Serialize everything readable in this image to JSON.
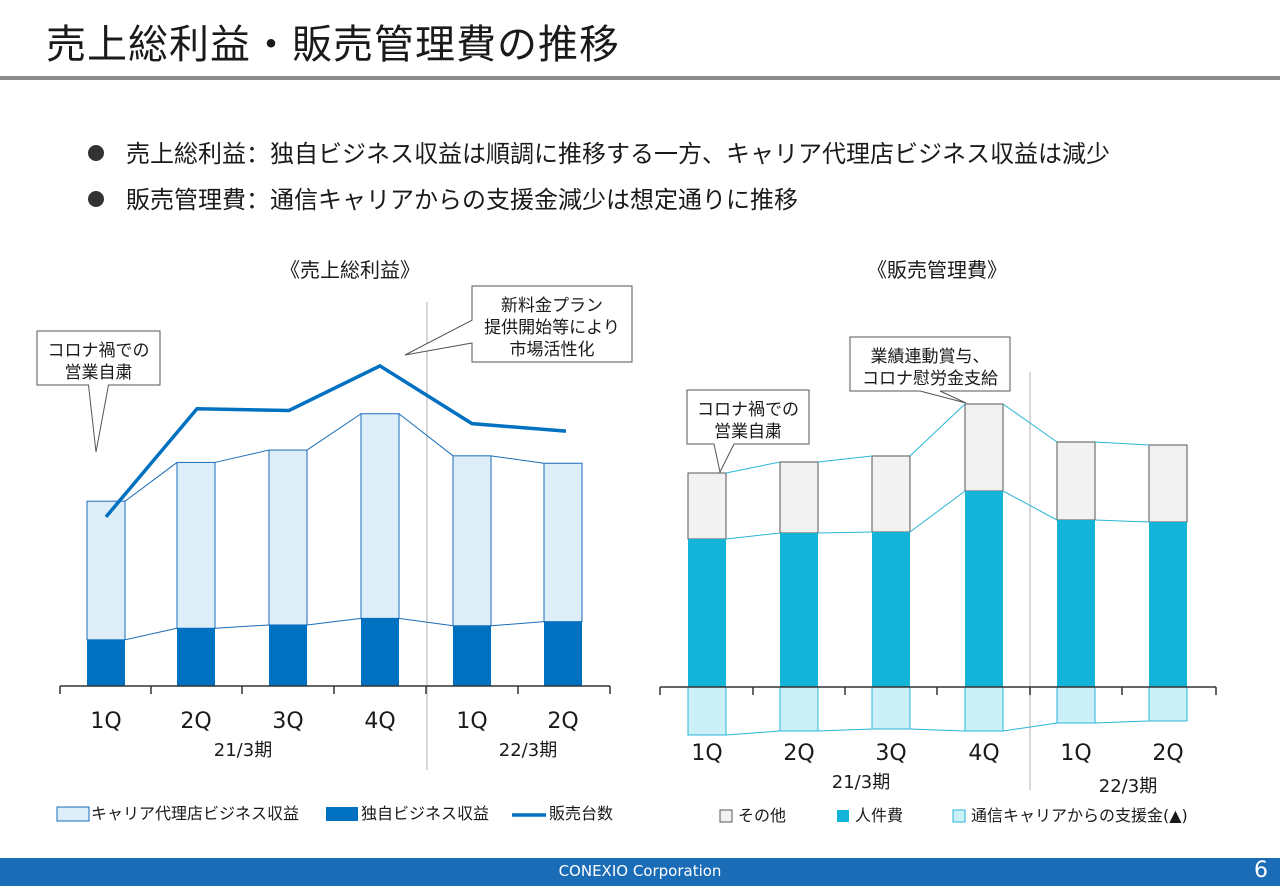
{
  "slide": {
    "title": "売上総利益・販売管理費の推移",
    "bullets": [
      "売上総利益：独自ビジネス収益は順調に推移する一方、キャリア代理店ビジネス収益は減少",
      "販売管理費：通信キャリアからの支援金減少は想定通りに推移"
    ],
    "footer": "CONEXIO Corporation",
    "page_number": "6"
  },
  "colors": {
    "carrier_fill": "#ddeef9",
    "carrier_border": "#1a6cb7",
    "own_fill": "#0070c0",
    "sales_line": "#0070c0",
    "other_fill": "#f2f2f2",
    "labor_fill": "#14b4d8",
    "support_fill": "#ccf0f8",
    "connector": "#29b6d6",
    "footer_bg": "#1a6cb7"
  },
  "chart_data": [
    {
      "type": "bar",
      "title": "《売上総利益》",
      "stacked": true,
      "categories": [
        "1Q",
        "2Q",
        "3Q",
        "4Q",
        "1Q",
        "2Q"
      ],
      "period_labels": [
        "21/3期",
        "22/3期"
      ],
      "series": [
        {
          "name": "キャリア代理店ビジネス収益",
          "kind": "bar",
          "values": [
            168,
            201,
            212,
            248,
            206,
            192
          ]
        },
        {
          "name": "独自ビジネス収益",
          "kind": "bar",
          "values": [
            56,
            70,
            74,
            82,
            73,
            78
          ]
        },
        {
          "name": "販売台数",
          "kind": "line",
          "values": [
            205,
            336,
            334,
            388,
            318,
            309
          ]
        }
      ],
      "ylim": [
        0,
        400
      ],
      "callouts": [
        "コロナ禍での\n営業自粛",
        "新料金プラン\n提供開始等により\n市場活性化"
      ]
    },
    {
      "type": "bar",
      "title": "《販売管理費》",
      "stacked": true,
      "categories": [
        "1Q",
        "2Q",
        "3Q",
        "4Q",
        "1Q",
        "2Q"
      ],
      "period_labels": [
        "21/3期",
        "22/3期"
      ],
      "series": [
        {
          "name": "その他",
          "values": [
            66,
            71,
            76,
            87,
            78,
            77
          ]
        },
        {
          "name": "人件費",
          "values": [
            148,
            154,
            155,
            196,
            167,
            165
          ]
        },
        {
          "name": "通信キャリアからの支援金(▲)",
          "values": [
            -48,
            -44,
            -42,
            -44,
            -36,
            -34
          ]
        }
      ],
      "ylim": [
        -60,
        320
      ],
      "callouts": [
        "コロナ禍での\n営業自粛",
        "業績連動賞与、\nコロナ慰労金支給"
      ]
    }
  ]
}
